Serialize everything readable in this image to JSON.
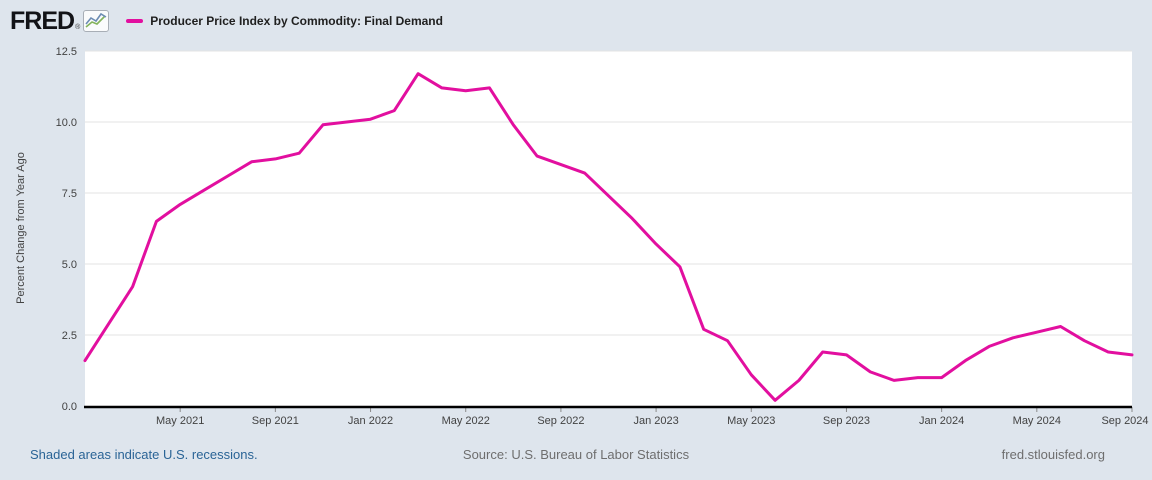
{
  "header": {
    "logo_text": "FRED",
    "registered_mark": "®",
    "legend_series_label": "Producer Price Index by Commodity: Final Demand"
  },
  "footer": {
    "recessions_note": "Shaded areas indicate U.S. recessions.",
    "source": "Source: U.S. Bureau of Labor Statistics",
    "site": "fred.stlouisfed.org"
  },
  "colors": {
    "background": "#dee5ed",
    "plot_background": "#ffffff",
    "line": "#e20f9f",
    "gridline": "#e3e3e3",
    "axis": "#000000",
    "tick_mark": "#8a8a8a",
    "tick_label": "#424242",
    "footer_link": "#2a6496",
    "footer_text": "#6e6e6e"
  },
  "chart_data": {
    "type": "line",
    "title": "Producer Price Index by Commodity: Final Demand",
    "ylabel": "Percent Change from Year Ago",
    "xlabel": "",
    "frequency": "monthly",
    "start_date": "2021-01",
    "end_date": "2024-09",
    "ylim": [
      0,
      12.5
    ],
    "grid": "horizontal",
    "legend_position": "top-left",
    "y_ticks": [
      "0.0",
      "2.5",
      "5.0",
      "7.5",
      "10.0",
      "12.5"
    ],
    "x_ticks": [
      {
        "label": "May 2021",
        "month_index": 4
      },
      {
        "label": "Sep 2021",
        "month_index": 8
      },
      {
        "label": "Jan 2022",
        "month_index": 12
      },
      {
        "label": "May 2022",
        "month_index": 16
      },
      {
        "label": "Sep 2022",
        "month_index": 20
      },
      {
        "label": "Jan 2023",
        "month_index": 24
      },
      {
        "label": "May 2023",
        "month_index": 28
      },
      {
        "label": "Sep 2023",
        "month_index": 32
      },
      {
        "label": "Jan 2024",
        "month_index": 36
      },
      {
        "label": "May 2024",
        "month_index": 40
      },
      {
        "label": "Sep 2024",
        "month_index": 44
      }
    ],
    "series": [
      {
        "name": "Producer Price Index by Commodity: Final Demand",
        "color": "#e20f9f",
        "values": [
          1.6,
          2.9,
          4.2,
          6.5,
          7.1,
          7.6,
          8.1,
          8.6,
          8.7,
          8.9,
          9.9,
          10.0,
          10.1,
          10.4,
          11.7,
          11.2,
          11.1,
          11.2,
          9.9,
          8.8,
          8.5,
          8.2,
          7.4,
          6.6,
          5.7,
          4.9,
          2.7,
          2.3,
          1.1,
          0.2,
          0.9,
          1.9,
          1.8,
          1.2,
          0.9,
          1.0,
          1.0,
          1.6,
          2.1,
          2.4,
          2.6,
          2.8,
          2.3,
          1.9,
          1.8
        ]
      }
    ]
  }
}
